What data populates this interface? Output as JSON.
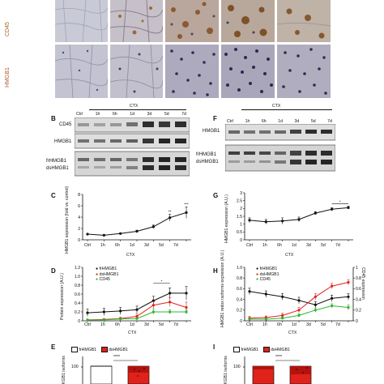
{
  "panelA": {
    "row_labels": [
      "CD45",
      "HMGB1"
    ],
    "row_colors": [
      "#a8642a",
      "#b05a2a"
    ]
  },
  "panelB": {
    "letter": "B",
    "ctx_label": "CTX",
    "lanes": [
      "Ctrl",
      "1h",
      "6h",
      "1d",
      "3d",
      "5d",
      "7d"
    ],
    "blot_labels": [
      "CD45",
      "HMGB1",
      "frHMGB1",
      "dsHMGB1"
    ]
  },
  "panelF": {
    "letter": "F",
    "ctx_label": "CTX",
    "lanes": [
      "Ctrl",
      "1h",
      "6h",
      "1d",
      "3d",
      "5d",
      "7d"
    ],
    "blot_labels": [
      "HMGB1",
      "frHMGB1",
      "dsHMGB1"
    ]
  },
  "panelC": {
    "letter": "C",
    "ylabel": "HMGB1 expression (fold vs. control)",
    "xlabel": "CTX",
    "ticks_y": [
      "0",
      "2",
      "4",
      "6",
      "8"
    ],
    "stars": [
      "**",
      "***"
    ]
  },
  "panelG": {
    "letter": "G",
    "ylabel": "HMGB1 expression (A.U.)",
    "xlabel": "CTX",
    "ticks_y": [
      "0",
      "0.5",
      "1",
      "1.5",
      "2",
      "2.5",
      "3"
    ],
    "stars": [
      "*"
    ]
  },
  "panelD": {
    "letter": "D",
    "ylabel": "Protein expression (A.U.)",
    "xlabel": "CTX",
    "ticks_y": [
      "0",
      "0.2",
      "0.4",
      "0.6",
      "0.8",
      "1.0",
      "1.2"
    ],
    "legend": [
      "frHMGB1",
      "dsHMGB1",
      "CD45"
    ],
    "stars": [
      "*"
    ]
  },
  "panelH": {
    "letter": "H",
    "ylabel": "HMGB1 redox isoforms expression (A.U.)",
    "ylabel_right": "CD45 expression",
    "xlabel": "CTX",
    "ticks_y": [
      "0",
      "0.2",
      "0.4",
      "0.6",
      "0.8",
      "1.0"
    ],
    "ticks_y_right": [
      "0",
      "0.2",
      "0.4",
      "0.6",
      "0.8",
      "1"
    ],
    "legend": [
      "frHMGB1",
      "dsHMGB1",
      "CD45"
    ]
  },
  "panelE": {
    "letter": "E",
    "ylabel": "KGB1 isoforms",
    "tick_y": "100",
    "legend": [
      "frHMGB1",
      "dsHMGB1"
    ],
    "stars": "****"
  },
  "panelI": {
    "letter": "I",
    "ylabel": "KGB1 isoforms",
    "tick_y": "100",
    "legend": [
      "frHMGB1",
      "dsHMGB1"
    ],
    "stars": "****"
  },
  "colors": {
    "black": "#111111",
    "red": "#e0221b",
    "green": "#2fb52f",
    "tissue_cd45": "#c9cad6",
    "tissue_hmgb1": "#c4c3d2"
  },
  "chart_data": [
    {
      "type": "line",
      "panel": "C",
      "categories": [
        "Ctrl",
        "1h",
        "6h",
        "1d",
        "3d",
        "5d",
        "7d"
      ],
      "series": [
        {
          "values": [
            1.0,
            0.8,
            1.1,
            1.5,
            2.3,
            3.9,
            4.8
          ],
          "errors": [
            0.1,
            0.1,
            0.1,
            0.2,
            0.3,
            0.6,
            1.0
          ]
        }
      ],
      "ylim": [
        0,
        8
      ]
    },
    {
      "type": "line",
      "panel": "G",
      "categories": [
        "Ctrl",
        "1h",
        "6h",
        "1d",
        "3d",
        "5d",
        "7d"
      ],
      "series": [
        {
          "values": [
            1.25,
            1.15,
            1.2,
            1.3,
            1.7,
            1.95,
            2.05
          ],
          "errors": [
            0.15,
            0.15,
            0.2,
            0.15,
            0.1,
            0.1,
            0.1
          ]
        }
      ],
      "ylim": [
        0,
        3
      ]
    },
    {
      "type": "line",
      "panel": "D",
      "categories": [
        "Ctrl",
        "1h",
        "6h",
        "1d",
        "3d",
        "5d",
        "7d"
      ],
      "series": [
        {
          "name": "frHMGB1",
          "values": [
            0.18,
            0.2,
            0.22,
            0.25,
            0.45,
            0.62,
            0.62
          ],
          "errors": [
            0.08,
            0.08,
            0.08,
            0.08,
            0.1,
            0.12,
            0.15
          ]
        },
        {
          "name": "dsHMGB1",
          "values": [
            0.02,
            0.03,
            0.05,
            0.1,
            0.35,
            0.42,
            0.3
          ],
          "errors": [
            0.02,
            0.02,
            0.03,
            0.05,
            0.08,
            0.1,
            0.12
          ]
        },
        {
          "name": "CD45",
          "values": [
            0.02,
            0.02,
            0.04,
            0.05,
            0.2,
            0.2,
            0.2
          ],
          "errors": [
            0.01,
            0.01,
            0.02,
            0.02,
            0.06,
            0.05,
            0.05
          ]
        }
      ],
      "ylim": [
        0,
        1.2
      ]
    },
    {
      "type": "line",
      "panel": "H",
      "categories": [
        "Ctrl",
        "1h",
        "6h",
        "1d",
        "3d",
        "5d",
        "7d"
      ],
      "series": [
        {
          "name": "frHMGB1",
          "values": [
            0.55,
            0.5,
            0.45,
            0.38,
            0.3,
            0.42,
            0.45
          ],
          "errors": [
            0.06,
            0.06,
            0.06,
            0.06,
            0.06,
            0.06,
            0.06
          ]
        },
        {
          "name": "dsHMGB1",
          "values": [
            0.05,
            0.06,
            0.1,
            0.2,
            0.45,
            0.65,
            0.72
          ],
          "errors": [
            0.03,
            0.03,
            0.04,
            0.05,
            0.06,
            0.05,
            0.05
          ]
        },
        {
          "name": "CD45",
          "values": [
            0.03,
            0.03,
            0.05,
            0.1,
            0.2,
            0.28,
            0.25
          ],
          "errors": [
            0.02,
            0.02,
            0.02,
            0.03,
            0.04,
            0.04,
            0.05
          ]
        }
      ],
      "ylim": [
        0,
        1.0
      ]
    }
  ]
}
